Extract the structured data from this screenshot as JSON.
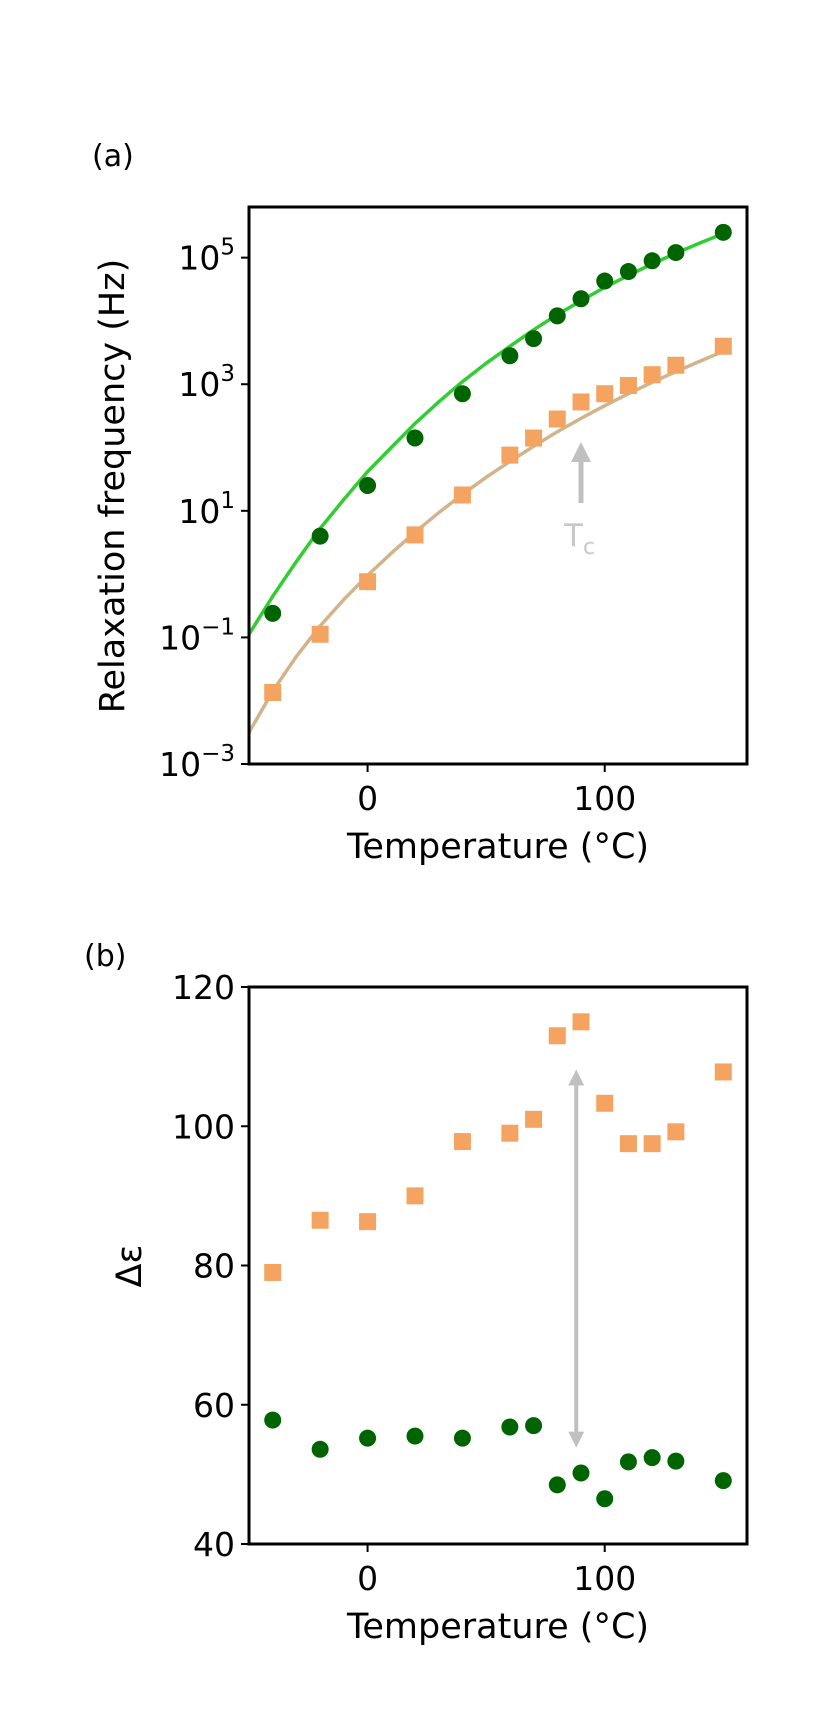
{
  "chart_data": [
    {
      "panel": "(a)",
      "type": "scatter",
      "xlabel": "Temperature (°C)",
      "ylabel": "Relaxation frequency (Hz)",
      "yscale": "log",
      "xlim": [
        -50,
        160
      ],
      "ylim_log10": [
        -3,
        5.8
      ],
      "xticks": [
        {
          "value": 0,
          "label": "0"
        },
        {
          "value": 100,
          "label": "100"
        }
      ],
      "yticks": [
        {
          "value": -3,
          "base": "10",
          "exp": "−3"
        },
        {
          "value": -1,
          "base": "10",
          "exp": "−1"
        },
        {
          "value": 1,
          "base": "10",
          "exp": "1"
        },
        {
          "value": 3,
          "base": "10",
          "exp": "3"
        },
        {
          "value": 5,
          "base": "10",
          "exp": "5"
        }
      ],
      "annotation": {
        "text": "T",
        "sub": "c",
        "x": 90,
        "color": "#c0c0c0"
      },
      "series": [
        {
          "name": "green circles",
          "marker": "circle",
          "color": "#006400",
          "fit_color": "#32cd32",
          "x": [
            -40,
            -20,
            0,
            20,
            40,
            60,
            70,
            80,
            90,
            100,
            110,
            120,
            130,
            150
          ],
          "y_log10": [
            -0.62,
            0.6,
            1.4,
            2.15,
            2.85,
            3.45,
            3.72,
            4.08,
            4.35,
            4.63,
            4.78,
            4.95,
            5.08,
            5.4
          ],
          "fit_x": [
            -50,
            -40,
            -30,
            -20,
            -10,
            0,
            10,
            20,
            30,
            40,
            50,
            60,
            70,
            80,
            90,
            100,
            110,
            120,
            130,
            140,
            150
          ],
          "fit_y_log10": [
            -0.95,
            -0.35,
            0.2,
            0.72,
            1.18,
            1.62,
            2.0,
            2.38,
            2.72,
            3.04,
            3.33,
            3.6,
            3.86,
            4.1,
            4.32,
            4.53,
            4.72,
            4.9,
            5.07,
            5.23,
            5.38
          ]
        },
        {
          "name": "orange squares",
          "marker": "square",
          "color": "#f4a460",
          "fit_color": "#d2b48c",
          "x": [
            -40,
            -20,
            0,
            20,
            40,
            60,
            70,
            80,
            90,
            100,
            110,
            120,
            130,
            150
          ],
          "y_log10": [
            -1.87,
            -0.95,
            -0.12,
            0.62,
            1.25,
            1.88,
            2.15,
            2.45,
            2.72,
            2.85,
            2.98,
            3.15,
            3.3,
            3.6
          ],
          "fit_x": [
            -50,
            -40,
            -30,
            -20,
            -10,
            0,
            10,
            20,
            30,
            40,
            50,
            60,
            70,
            80,
            90,
            100,
            110,
            120,
            130,
            140,
            150
          ],
          "fit_y_log10": [
            -2.5,
            -1.85,
            -1.3,
            -0.82,
            -0.4,
            -0.02,
            0.33,
            0.66,
            0.97,
            1.26,
            1.53,
            1.78,
            2.02,
            2.25,
            2.46,
            2.66,
            2.85,
            3.03,
            3.2,
            3.36,
            3.52
          ]
        }
      ]
    },
    {
      "panel": "(b)",
      "type": "scatter",
      "xlabel": "Temperature (°C)",
      "ylabel": "Δε",
      "xlim": [
        -50,
        160
      ],
      "ylim": [
        40,
        120
      ],
      "xticks": [
        {
          "value": 0,
          "label": "0"
        },
        {
          "value": 100,
          "label": "100"
        }
      ],
      "yticks": [
        {
          "value": 40,
          "label": "40"
        },
        {
          "value": 60,
          "label": "60"
        },
        {
          "value": 80,
          "label": "80"
        },
        {
          "value": 100,
          "label": "100"
        },
        {
          "value": 120,
          "label": "120"
        }
      ],
      "annotation": {
        "type": "double-arrow",
        "x": 88,
        "y_from": 55,
        "y_to": 107,
        "color": "#c0c0c0"
      },
      "series": [
        {
          "name": "orange squares",
          "marker": "square",
          "color": "#f4a460",
          "x": [
            -40,
            -20,
            0,
            20,
            40,
            60,
            70,
            80,
            90,
            100,
            110,
            120,
            130,
            150
          ],
          "y": [
            79,
            86.5,
            86.3,
            90,
            97.8,
            99,
            101,
            113,
            115,
            103.3,
            97.5,
            97.5,
            99.2,
            107.8
          ]
        },
        {
          "name": "green circles",
          "marker": "circle",
          "color": "#006400",
          "x": [
            -40,
            -20,
            0,
            20,
            40,
            60,
            70,
            80,
            90,
            100,
            110,
            120,
            130,
            150
          ],
          "y": [
            57.8,
            53.6,
            55.2,
            55.5,
            55.2,
            56.8,
            57,
            48.5,
            50.2,
            46.5,
            51.8,
            52.4,
            51.9,
            49.1
          ]
        }
      ]
    }
  ]
}
